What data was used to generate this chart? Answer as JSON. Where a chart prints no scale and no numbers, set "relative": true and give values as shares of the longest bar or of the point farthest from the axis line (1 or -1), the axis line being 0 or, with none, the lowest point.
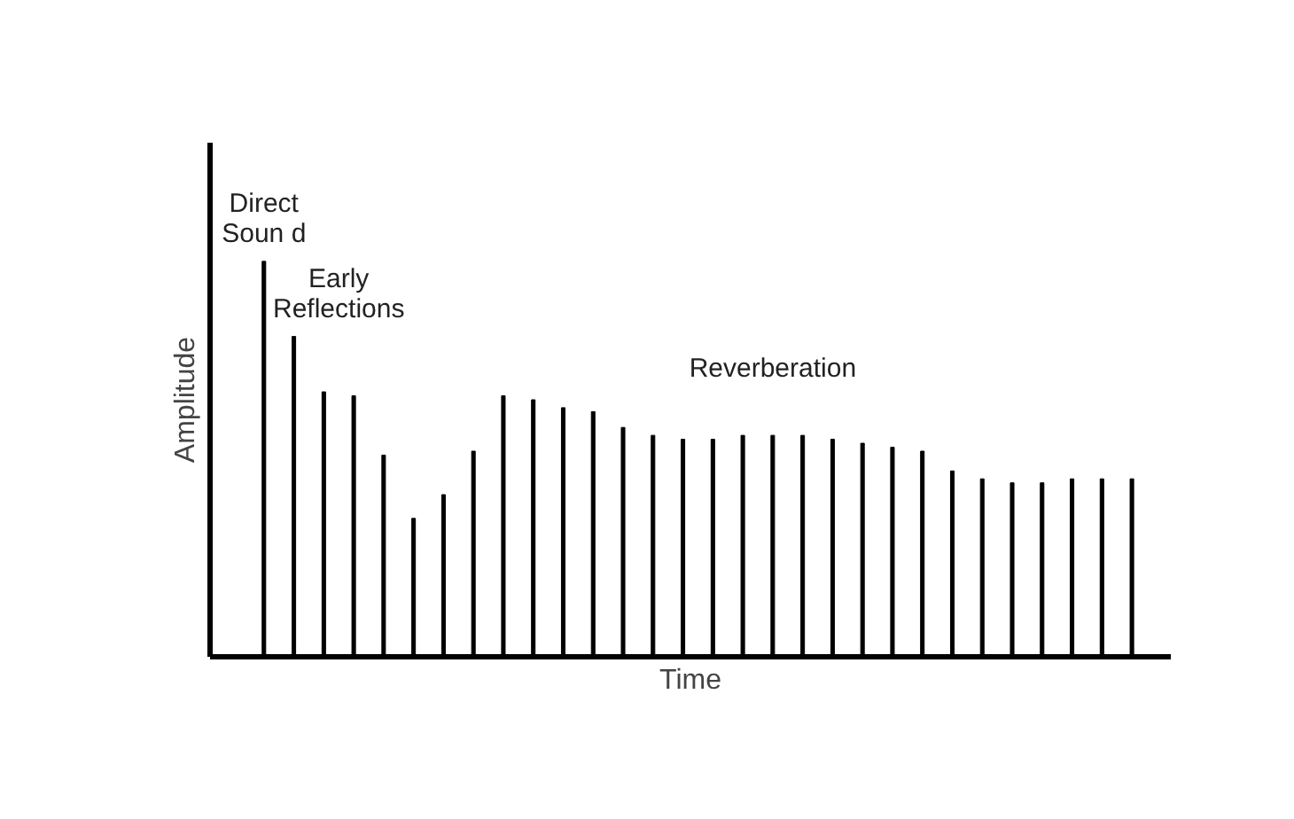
{
  "chart_data": {
    "type": "bar",
    "relative": true,
    "xlabel": "Time",
    "ylabel": "Amplitude",
    "categories": [
      null,
      null,
      null,
      null,
      null,
      null,
      null,
      null,
      null,
      null,
      null,
      null,
      null,
      null,
      null,
      null,
      null,
      null,
      null,
      null,
      null,
      null,
      null,
      null,
      null,
      null,
      null,
      null,
      null,
      null
    ],
    "values": [
      1,
      0.81,
      0.67,
      0.66,
      0.51,
      0.35,
      0.41,
      0.52,
      0.66,
      0.65,
      0.63,
      0.62,
      0.58,
      0.56,
      0.55,
      0.55,
      0.56,
      0.56,
      0.56,
      0.55,
      0.54,
      0.53,
      0.52,
      0.47,
      0.45,
      0.44,
      0.44,
      0.45,
      0.45,
      0.45
    ],
    "color": "#000000",
    "tick_labels": false,
    "legend": false,
    "annotations": [
      {
        "text": "Direct\nSoun d"
      },
      {
        "text": "Early\nReflections"
      },
      {
        "text": "Reverberation"
      }
    ]
  }
}
